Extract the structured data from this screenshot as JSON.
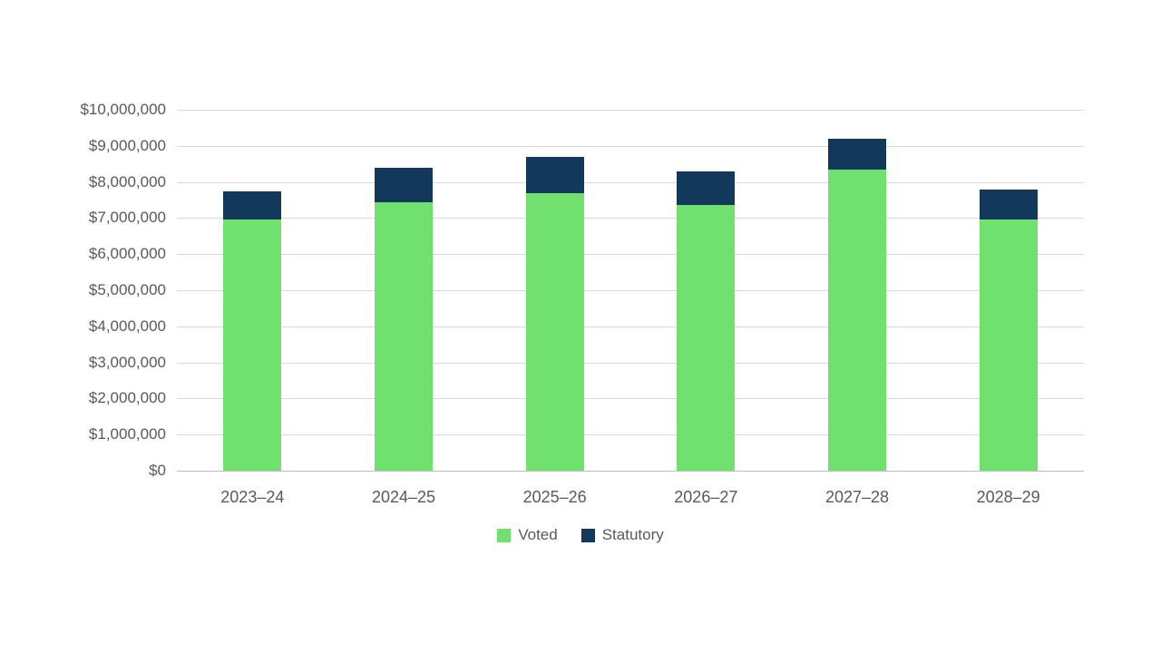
{
  "chart_data": {
    "type": "bar",
    "stacked": true,
    "title": "",
    "xlabel": "",
    "ylabel": "",
    "categories": [
      "2023–24",
      "2024–25",
      "2025–26",
      "2026–27",
      "2027–28",
      "2028–29"
    ],
    "series": [
      {
        "name": "Voted",
        "color": "#70e16e",
        "values": [
          6950000,
          7450000,
          7700000,
          7350000,
          8350000,
          6950000
        ]
      },
      {
        "name": "Statutory",
        "color": "#12395b",
        "values": [
          800000,
          950000,
          1000000,
          950000,
          850000,
          850000
        ]
      }
    ],
    "ylim": [
      0,
      10000000
    ],
    "ytick_step": 1000000,
    "ytick_labels": [
      "$0",
      "$1,000,000",
      "$2,000,000",
      "$3,000,000",
      "$4,000,000",
      "$5,000,000",
      "$6,000,000",
      "$7,000,000",
      "$8,000,000",
      "$9,000,000",
      "$10,000,000"
    ],
    "grid": true,
    "legend_position": "bottom"
  },
  "colors": {
    "grid": "#d9d9d9",
    "axis_text": "#595959",
    "background": "#ffffff"
  }
}
